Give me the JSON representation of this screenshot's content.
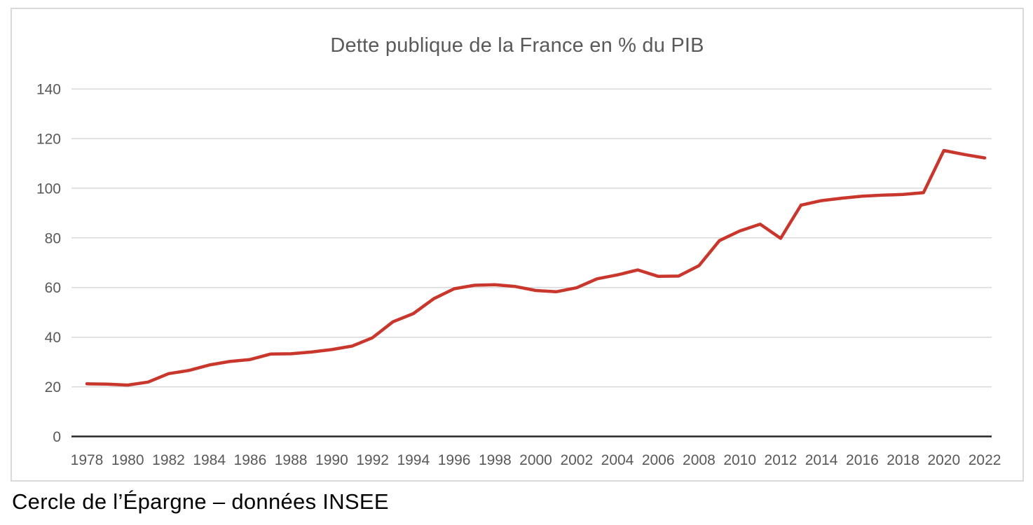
{
  "chart": {
    "title": "Dette publique de la France en % du PIB",
    "title_color": "#595959",
    "tick_color": "#595959",
    "grid_color": "#d9d9d9",
    "axis_color": "#262626",
    "border_color": "#d9d9d9",
    "background": "#ffffff"
  },
  "caption": {
    "text": "Cercle de l’Épargne – données INSEE",
    "color": "#000000"
  },
  "chart_data": {
    "type": "line",
    "title": "Dette publique de la France en % du PIB",
    "x": [
      1978,
      1979,
      1980,
      1981,
      1982,
      1983,
      1984,
      1985,
      1986,
      1987,
      1988,
      1989,
      1990,
      1991,
      1992,
      1993,
      1994,
      1995,
      1996,
      1997,
      1998,
      1999,
      2000,
      2001,
      2002,
      2003,
      2004,
      2005,
      2006,
      2007,
      2008,
      2009,
      2010,
      2011,
      2012,
      2013,
      2014,
      2015,
      2016,
      2017,
      2018,
      2019,
      2020,
      2021,
      2022
    ],
    "values": [
      21.2,
      21.1,
      20.7,
      21.9,
      25.3,
      26.6,
      28.8,
      30.2,
      31.0,
      33.2,
      33.3,
      34.0,
      35.0,
      36.4,
      39.8,
      46.2,
      49.5,
      55.5,
      59.5,
      60.9,
      61.1,
      60.4,
      58.8,
      58.3,
      59.9,
      63.5,
      65.1,
      67.1,
      64.5,
      64.6,
      68.8,
      78.9,
      82.8,
      85.5,
      79.8,
      93.2,
      95.0,
      96.0,
      96.8,
      97.2,
      97.5,
      98.2,
      115.2,
      113.6,
      112.2
    ],
    "xlabel": "",
    "ylabel": "",
    "ylim": [
      0,
      140
    ],
    "y_ticks": [
      0,
      20,
      40,
      60,
      80,
      100,
      120,
      140
    ],
    "x_tick_labels": [
      "1978",
      "1980",
      "1982",
      "1984",
      "1986",
      "1988",
      "1990",
      "1992",
      "1994",
      "1996",
      "1998",
      "2000",
      "2002",
      "2004",
      "2006",
      "2008",
      "2010",
      "2012",
      "2014",
      "2016",
      "2018",
      "2020",
      "2022"
    ],
    "grid": true,
    "legend": "none",
    "line_color": "#c9362c"
  }
}
